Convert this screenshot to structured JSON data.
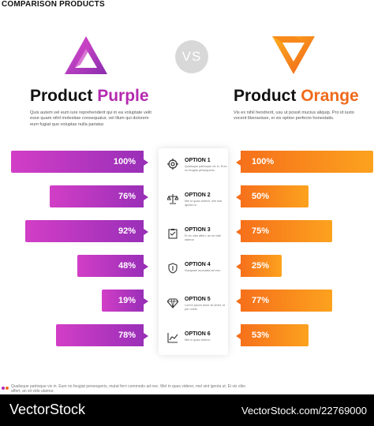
{
  "header": {
    "title": "COMPARISON PRODUCTS"
  },
  "vs_label": "VS",
  "products": {
    "left": {
      "word1": "Product",
      "word2": "Purple",
      "accent": "#b42ab0",
      "logo": "purple-triangle-logo",
      "description": "Quis autem vel eum iure reprehenderit qui in ea voluptate velit esse quam nihil molestiae consequatur, vel illum qui dolorem eum fugiat quo voluptas nulla pariatur."
    },
    "right": {
      "word1": "Product",
      "word2": "Orange",
      "accent": "#f06a1a",
      "logo": "orange-triangle-logo",
      "description": "Vis ex nihil hendrerit, usu ut possit mucius aliquip. Pro id iusto vocent liberavisse, ei vis option perfecto honestatis."
    }
  },
  "options": [
    {
      "title": "OPTION 1",
      "sub": "Qualisque patrioque vix in. Eum no feugiat persequeris.",
      "icon": "target-gear-icon",
      "left": "100%",
      "right": "100%",
      "left_value": 100,
      "right_value": 100
    },
    {
      "title": "OPTION 2",
      "sub": "Mel in quas viderer, mel sint ignota ut.",
      "icon": "scales-icon",
      "left": "76%",
      "right": "50%",
      "left_value": 76,
      "right_value": 50
    },
    {
      "title": "OPTION 3",
      "sub": "Ei vix cibo affert, an sit vide utamur.",
      "icon": "clipboard-icon",
      "left": "92%",
      "right": "75%",
      "left_value": 92,
      "right_value": 75
    },
    {
      "title": "OPTION 4",
      "sub": "Nusquam accusata ad eos.",
      "icon": "shield-icon",
      "left": "48%",
      "right": "25%",
      "left_value": 48,
      "right_value": 25
    },
    {
      "title": "OPTION 5",
      "sub": "Lorem ipsum dolor sit amet, id per nobis.",
      "icon": "diamond-icon",
      "left": "19%",
      "right": "77%",
      "left_value": 19,
      "right_value": 77
    },
    {
      "title": "OPTION 6",
      "sub": "Mel in quas viderer.",
      "icon": "chart-icon",
      "left": "78%",
      "right": "53%",
      "left_value": 78,
      "right_value": 53
    }
  ],
  "footer": {
    "text": "Qualisque patrioque vix in. Eum no feugiat persequeris, mutat ferri commodo ad nec. Mel in quas viderer, mel sint ignota ut. Ei vix cibo affert, an sit vide utamur."
  },
  "brand": {
    "left": "VectorStock",
    "right": "VectorStock.com/22769000"
  },
  "colors": {
    "purple_start": "#d23ec6",
    "purple_end": "#9a2fb8",
    "orange_start": "#f6701b",
    "orange_end": "#fca21e"
  }
}
